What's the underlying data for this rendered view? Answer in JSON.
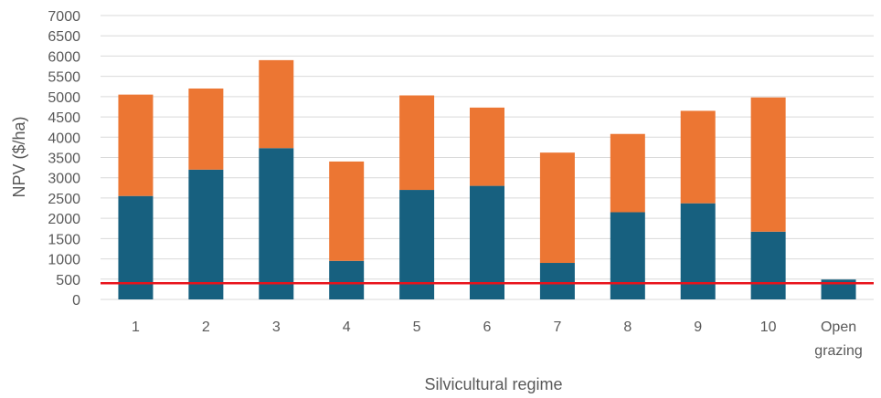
{
  "chart_data": {
    "type": "bar",
    "stacked": true,
    "categories": [
      "1",
      "2",
      "3",
      "4",
      "5",
      "6",
      "7",
      "8",
      "9",
      "10",
      "Open grazing"
    ],
    "category_lines": [
      [
        "1"
      ],
      [
        "2"
      ],
      [
        "3"
      ],
      [
        "4"
      ],
      [
        "5"
      ],
      [
        "6"
      ],
      [
        "7"
      ],
      [
        "8"
      ],
      [
        "9"
      ],
      [
        "10"
      ],
      [
        "Open",
        "grazing"
      ]
    ],
    "series": [
      {
        "values": [
          2550,
          3200,
          3730,
          950,
          2700,
          2800,
          900,
          2150,
          2370,
          1670,
          490
        ],
        "color": "#17607f"
      },
      {
        "values": [
          2500,
          2000,
          2170,
          2450,
          2330,
          1930,
          2720,
          1930,
          2280,
          3310,
          0
        ],
        "color": "#ec7633"
      }
    ],
    "reference_line": {
      "value": 400,
      "color": "#e8131b"
    },
    "xlabel": "Silvicultural regime",
    "ylabel": "NPV ($/ha)",
    "ylim": [
      0,
      7000
    ],
    "ytick_step": 500,
    "grid": true,
    "gridline_color": "#d9d9d9"
  }
}
